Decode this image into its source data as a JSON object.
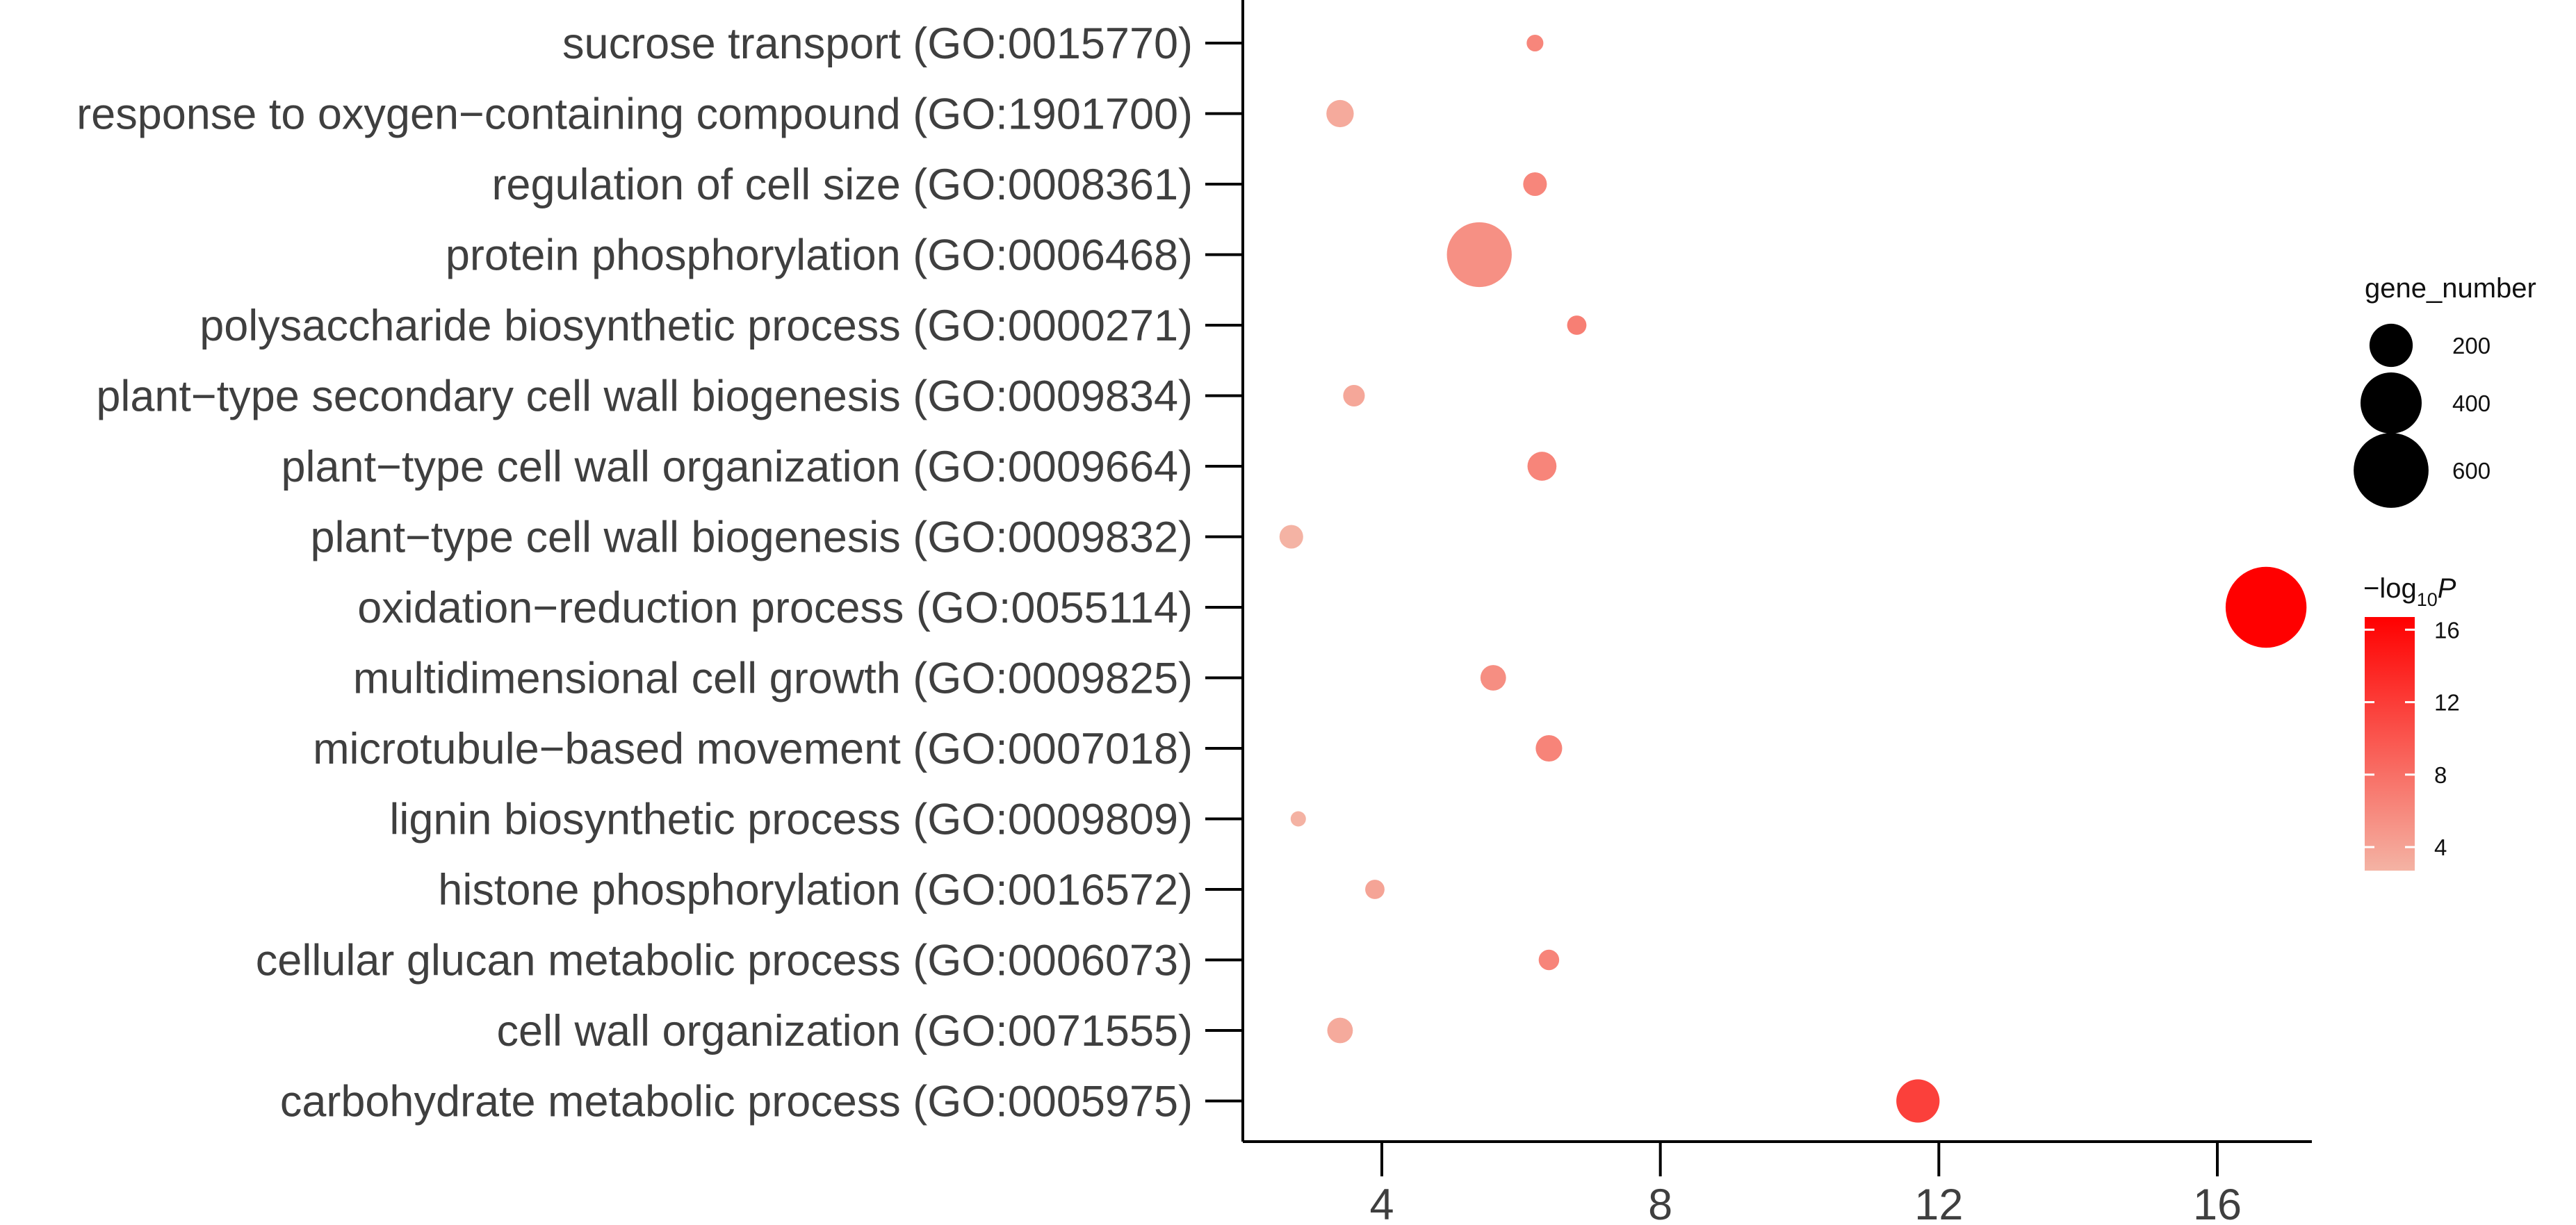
{
  "chart_data": {
    "type": "scatter",
    "title": "",
    "xlabel": "",
    "ylabel": "",
    "xlim": [
      2.2,
      17.5
    ],
    "xticks": [
      "4",
      "8",
      "12",
      "16"
    ],
    "categories": [
      "sucrose transport (GO:0015770)",
      "response to oxygen−containing compound (GO:1901700)",
      "regulation of cell size (GO:0008361)",
      "protein phosphorylation (GO:0006468)",
      "polysaccharide biosynthetic process (GO:0000271)",
      "plant−type secondary cell wall biogenesis (GO:0009834)",
      "plant−type cell wall organization (GO:0009664)",
      "plant−type cell wall biogenesis (GO:0009832)",
      "oxidation−reduction process (GO:0055114)",
      "multidimensional cell growth (GO:0009825)",
      "microtubule−based movement (GO:0007018)",
      "lignin biosynthetic process (GO:0009809)",
      "histone phosphorylation (GO:0016572)",
      "cellular glucan metabolic process (GO:0006073)",
      "cell wall organization (GO:0071555)",
      "carbohydrate metabolic process (GO:0005975)"
    ],
    "points": [
      {
        "term": "sucrose transport (GO:0015770)",
        "x": 6.2,
        "gene_number": 30,
        "neg_log10_p": 6.2
      },
      {
        "term": "response to oxygen−containing compound (GO:1901700)",
        "x": 3.4,
        "gene_number": 80,
        "neg_log10_p": 3.4
      },
      {
        "term": "regulation of cell size (GO:0008361)",
        "x": 6.2,
        "gene_number": 60,
        "neg_log10_p": 6.2
      },
      {
        "term": "protein phosphorylation (GO:0006468)",
        "x": 5.4,
        "gene_number": 450,
        "neg_log10_p": 5.4
      },
      {
        "term": "polysaccharide biosynthetic process (GO:0000271)",
        "x": 6.8,
        "gene_number": 40,
        "neg_log10_p": 6.8
      },
      {
        "term": "plant−type secondary cell wall biogenesis (GO:0009834)",
        "x": 3.6,
        "gene_number": 50,
        "neg_log10_p": 3.6
      },
      {
        "term": "plant−type cell wall organization (GO:0009664)",
        "x": 6.3,
        "gene_number": 90,
        "neg_log10_p": 6.3
      },
      {
        "term": "plant−type cell wall biogenesis (GO:0009832)",
        "x": 2.7,
        "gene_number": 60,
        "neg_log10_p": 2.7
      },
      {
        "term": "oxidation−reduction process (GO:0055114)",
        "x": 16.7,
        "gene_number": 700,
        "neg_log10_p": 16.7
      },
      {
        "term": "multidimensional cell growth (GO:0009825)",
        "x": 5.6,
        "gene_number": 70,
        "neg_log10_p": 5.6
      },
      {
        "term": "microtubule−based movement (GO:0007018)",
        "x": 6.4,
        "gene_number": 75,
        "neg_log10_p": 6.4
      },
      {
        "term": "lignin biosynthetic process (GO:0009809)",
        "x": 2.8,
        "gene_number": 25,
        "neg_log10_p": 2.8
      },
      {
        "term": "histone phosphorylation (GO:0016572)",
        "x": 3.9,
        "gene_number": 40,
        "neg_log10_p": 3.9
      },
      {
        "term": "cellular glucan metabolic process (GO:0006073)",
        "x": 6.4,
        "gene_number": 45,
        "neg_log10_p": 6.4
      },
      {
        "term": "cell wall organization (GO:0071555)",
        "x": 3.4,
        "gene_number": 70,
        "neg_log10_p": 3.4
      },
      {
        "term": "carbohydrate metabolic process (GO:0005975)",
        "x": 11.7,
        "gene_number": 200,
        "neg_log10_p": 11.7
      }
    ],
    "size_legend": {
      "title": "gene_number",
      "entries": [
        {
          "value": 200,
          "label": "200"
        },
        {
          "value": 400,
          "label": "400"
        },
        {
          "value": 600,
          "label": "600"
        }
      ]
    },
    "color_legend": {
      "title_prefix": "−log",
      "title_sub": "10",
      "title_var": "P",
      "range": [
        2.7,
        16.7
      ],
      "ticks": [
        {
          "value": 4,
          "label": "4"
        },
        {
          "value": 8,
          "label": "8"
        },
        {
          "value": 12,
          "label": "12"
        },
        {
          "value": 16,
          "label": "16"
        }
      ],
      "low_color": "#f4b3a4",
      "high_color": "#ff0000"
    },
    "grid": false,
    "legend_position": "right"
  }
}
